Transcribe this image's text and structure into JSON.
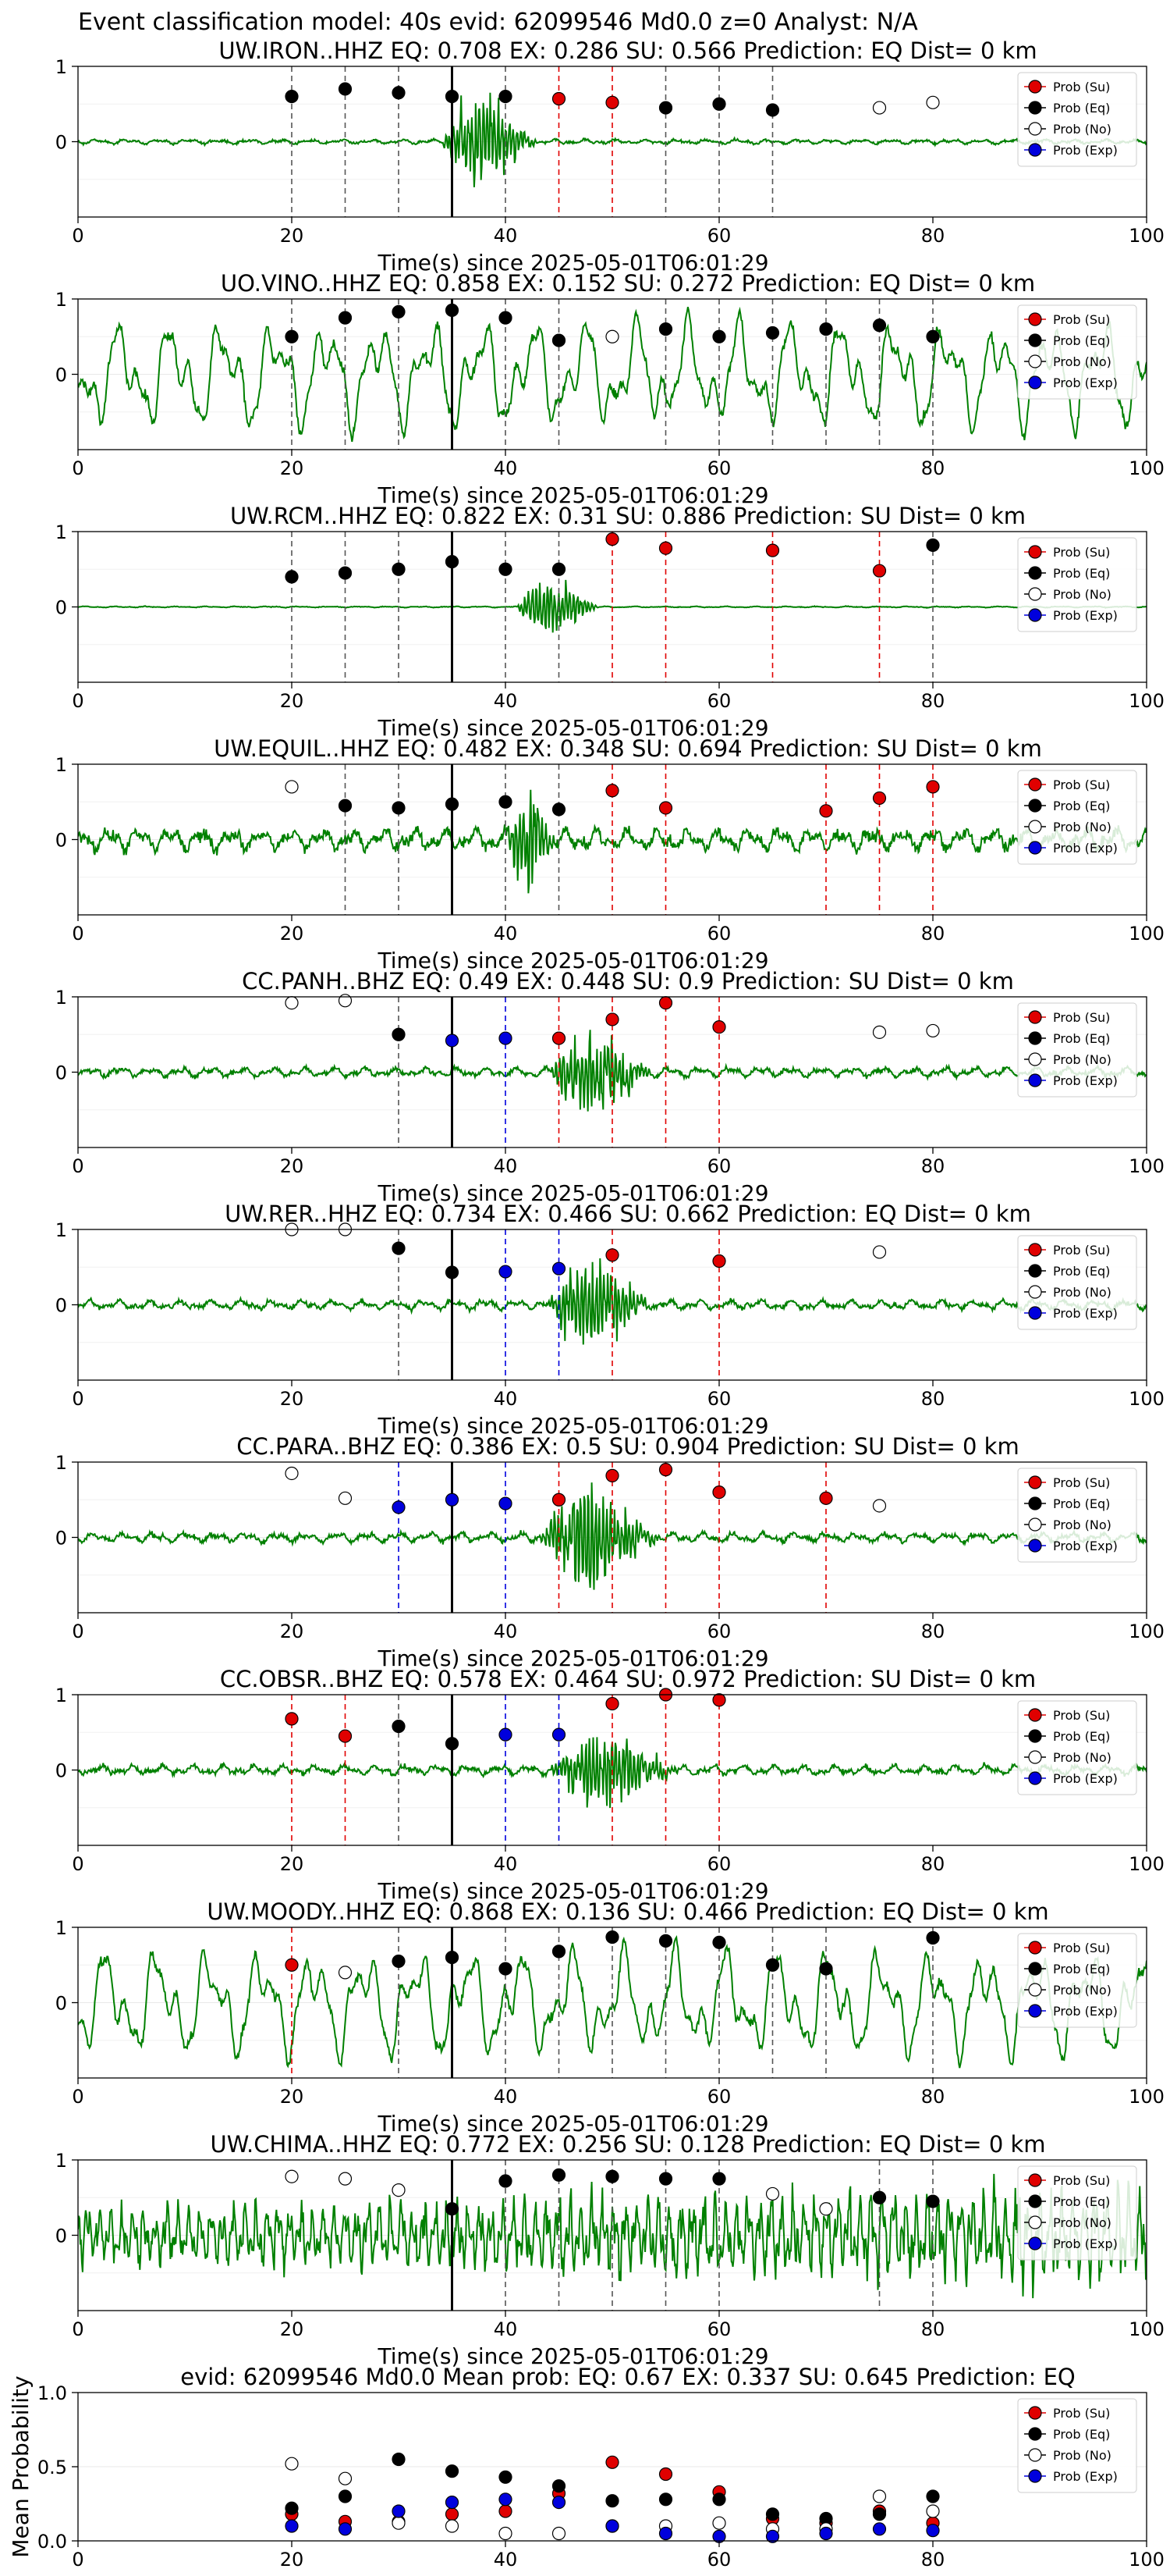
{
  "figure_title": "Event classification model: 40s evid: 62099546 Md0.0 z=0 Analyst: N/A",
  "colors": {
    "trace": "#008000",
    "su": "#e00000",
    "eq": "#000000",
    "no": "#ffffff",
    "exp": "#0000dd",
    "arrival": "#000000"
  },
  "legend_entries": [
    "Prob (Su)",
    "Prob (Eq)",
    "Prob (No)",
    "Prob (Exp)"
  ],
  "chart_data": [
    {
      "type": "scatter",
      "station": "UW.IRON..HHZ",
      "title": "UW.IRON..HHZ   EQ: 0.708  EX: 0.286  SU: 0.566   Prediction: EQ    Dist= 0 km",
      "xlabel": "Time(s) since 2025-05-01T06:01:29",
      "xlim": [
        0,
        100
      ],
      "ylim": [
        -1,
        1
      ],
      "yticks": [
        0,
        1
      ],
      "xticks": [
        0,
        20,
        40,
        60,
        80,
        100
      ],
      "arrival": 35,
      "waveform": {
        "amplitude": "quiet",
        "burst_start": 34,
        "burst_end": 47,
        "burst_amp": 1.3,
        "event": "strong"
      },
      "points": [
        {
          "x": 20,
          "y": 0.6,
          "cls": "Eq"
        },
        {
          "x": 25,
          "y": 0.7,
          "cls": "Eq"
        },
        {
          "x": 30,
          "y": 0.65,
          "cls": "Eq"
        },
        {
          "x": 35,
          "y": 0.6,
          "cls": "Eq"
        },
        {
          "x": 40,
          "y": 0.6,
          "cls": "Eq"
        },
        {
          "x": 45,
          "y": 0.57,
          "cls": "Su"
        },
        {
          "x": 50,
          "y": 0.52,
          "cls": "Su"
        },
        {
          "x": 55,
          "y": 0.45,
          "cls": "Eq"
        },
        {
          "x": 60,
          "y": 0.5,
          "cls": "Eq"
        },
        {
          "x": 65,
          "y": 0.42,
          "cls": "Eq"
        },
        {
          "x": 75,
          "y": 0.45,
          "cls": "No"
        },
        {
          "x": 80,
          "y": 0.52,
          "cls": "No"
        }
      ]
    },
    {
      "type": "scatter",
      "station": "UO.VINO..HHZ",
      "title": "UO.VINO..HHZ   EQ: 0.858  EX: 0.152  SU: 0.272   Prediction: EQ    Dist= 0 km",
      "xlabel": "Time(s) since 2025-05-01T06:01:29",
      "xlim": [
        0,
        100
      ],
      "ylim": [
        -1,
        1
      ],
      "yticks": [
        0,
        1
      ],
      "xticks": [
        0,
        20,
        40,
        60,
        80,
        100
      ],
      "arrival": 35,
      "waveform": {
        "amplitude": "noisy",
        "burst_start": 0,
        "burst_end": 0,
        "burst_amp": 0,
        "event": "none"
      },
      "points": [
        {
          "x": 20,
          "y": 0.5,
          "cls": "Eq"
        },
        {
          "x": 25,
          "y": 0.75,
          "cls": "Eq"
        },
        {
          "x": 30,
          "y": 0.83,
          "cls": "Eq"
        },
        {
          "x": 35,
          "y": 0.85,
          "cls": "Eq"
        },
        {
          "x": 40,
          "y": 0.75,
          "cls": "Eq"
        },
        {
          "x": 45,
          "y": 0.45,
          "cls": "Eq"
        },
        {
          "x": 50,
          "y": 0.5,
          "cls": "No"
        },
        {
          "x": 55,
          "y": 0.6,
          "cls": "Eq"
        },
        {
          "x": 60,
          "y": 0.5,
          "cls": "Eq"
        },
        {
          "x": 65,
          "y": 0.55,
          "cls": "Eq"
        },
        {
          "x": 70,
          "y": 0.6,
          "cls": "Eq"
        },
        {
          "x": 75,
          "y": 0.65,
          "cls": "Eq"
        },
        {
          "x": 80,
          "y": 0.5,
          "cls": "Eq"
        }
      ]
    },
    {
      "type": "scatter",
      "station": "UW.RCM..HHZ",
      "title": "UW.RCM..HHZ   EQ: 0.822  EX: 0.31  SU: 0.886   Prediction: SU    Dist= 0 km",
      "xlabel": "Time(s) since 2025-05-01T06:01:29",
      "xlim": [
        0,
        100
      ],
      "ylim": [
        -1,
        1
      ],
      "yticks": [
        0,
        1
      ],
      "xticks": [
        0,
        20,
        40,
        60,
        80,
        100
      ],
      "arrival": 35,
      "waveform": {
        "amplitude": "flat",
        "burst_start": 41,
        "burst_end": 52,
        "burst_amp": 0.8,
        "event": "medium"
      },
      "points": [
        {
          "x": 20,
          "y": 0.4,
          "cls": "Eq"
        },
        {
          "x": 25,
          "y": 0.45,
          "cls": "Eq"
        },
        {
          "x": 30,
          "y": 0.5,
          "cls": "Eq"
        },
        {
          "x": 35,
          "y": 0.6,
          "cls": "Eq"
        },
        {
          "x": 40,
          "y": 0.5,
          "cls": "Eq"
        },
        {
          "x": 45,
          "y": 0.5,
          "cls": "Eq"
        },
        {
          "x": 50,
          "y": 0.9,
          "cls": "Su"
        },
        {
          "x": 55,
          "y": 0.78,
          "cls": "Su"
        },
        {
          "x": 65,
          "y": 0.75,
          "cls": "Su"
        },
        {
          "x": 75,
          "y": 0.48,
          "cls": "Su"
        },
        {
          "x": 80,
          "y": 0.82,
          "cls": "Eq"
        }
      ]
    },
    {
      "type": "scatter",
      "station": "UW.EQUIL..HHZ",
      "title": "UW.EQUIL..HHZ   EQ: 0.482  EX: 0.348  SU: 0.694   Prediction: SU    Dist= 0 km",
      "xlabel": "Time(s) since 2025-05-01T06:01:29",
      "xlim": [
        0,
        100
      ],
      "ylim": [
        -1,
        1
      ],
      "yticks": [
        0,
        1
      ],
      "xticks": [
        0,
        20,
        40,
        60,
        80,
        100
      ],
      "arrival": 35,
      "waveform": {
        "amplitude": "medium",
        "burst_start": 40,
        "burst_end": 47,
        "burst_amp": 1.3,
        "event": "strong"
      },
      "points": [
        {
          "x": 20,
          "y": 0.7,
          "cls": "No"
        },
        {
          "x": 25,
          "y": 0.45,
          "cls": "Eq"
        },
        {
          "x": 30,
          "y": 0.42,
          "cls": "Eq"
        },
        {
          "x": 35,
          "y": 0.47,
          "cls": "Eq"
        },
        {
          "x": 40,
          "y": 0.5,
          "cls": "Eq"
        },
        {
          "x": 45,
          "y": 0.4,
          "cls": "Eq"
        },
        {
          "x": 50,
          "y": 0.65,
          "cls": "Su"
        },
        {
          "x": 55,
          "y": 0.42,
          "cls": "Su"
        },
        {
          "x": 70,
          "y": 0.38,
          "cls": "Su"
        },
        {
          "x": 75,
          "y": 0.55,
          "cls": "Su"
        },
        {
          "x": 80,
          "y": 0.7,
          "cls": "Su"
        }
      ]
    },
    {
      "type": "scatter",
      "station": "CC.PANH..BHZ",
      "title": "CC.PANH..BHZ   EQ: 0.49  EX: 0.448  SU: 0.9   Prediction: SU    Dist= 0 km",
      "xlabel": "Time(s) since 2025-05-01T06:01:29",
      "xlim": [
        0,
        100
      ],
      "ylim": [
        -1,
        1
      ],
      "yticks": [
        0,
        1
      ],
      "xticks": [
        0,
        20,
        40,
        60,
        80,
        100
      ],
      "arrival": 35,
      "waveform": {
        "amplitude": "low",
        "burst_start": 44,
        "burst_end": 58,
        "burst_amp": 1.2,
        "event": "strong"
      },
      "points": [
        {
          "x": 20,
          "y": 0.92,
          "cls": "No"
        },
        {
          "x": 25,
          "y": 0.95,
          "cls": "No"
        },
        {
          "x": 30,
          "y": 0.5,
          "cls": "Eq"
        },
        {
          "x": 35,
          "y": 0.42,
          "cls": "Exp"
        },
        {
          "x": 40,
          "y": 0.45,
          "cls": "Exp"
        },
        {
          "x": 45,
          "y": 0.45,
          "cls": "Su"
        },
        {
          "x": 50,
          "y": 0.7,
          "cls": "Su"
        },
        {
          "x": 55,
          "y": 0.92,
          "cls": "Su"
        },
        {
          "x": 60,
          "y": 0.6,
          "cls": "Su"
        },
        {
          "x": 75,
          "y": 0.53,
          "cls": "No"
        },
        {
          "x": 80,
          "y": 0.55,
          "cls": "No"
        }
      ]
    },
    {
      "type": "scatter",
      "station": "UW.RER..HHZ",
      "title": "UW.RER..HHZ   EQ: 0.734  EX: 0.466  SU: 0.662   Prediction: EQ    Dist= 0 km",
      "xlabel": "Time(s) since 2025-05-01T06:01:29",
      "xlim": [
        0,
        100
      ],
      "ylim": [
        -1,
        1
      ],
      "yticks": [
        0,
        1
      ],
      "xticks": [
        0,
        20,
        40,
        60,
        80,
        100
      ],
      "arrival": 35,
      "waveform": {
        "amplitude": "low",
        "burst_start": 44,
        "burst_end": 58,
        "burst_amp": 1.2,
        "event": "strong"
      },
      "points": [
        {
          "x": 20,
          "y": 1.0,
          "cls": "No"
        },
        {
          "x": 25,
          "y": 1.0,
          "cls": "No"
        },
        {
          "x": 30,
          "y": 0.75,
          "cls": "Eq"
        },
        {
          "x": 35,
          "y": 0.43,
          "cls": "Eq"
        },
        {
          "x": 40,
          "y": 0.44,
          "cls": "Exp"
        },
        {
          "x": 45,
          "y": 0.48,
          "cls": "Exp"
        },
        {
          "x": 50,
          "y": 0.66,
          "cls": "Su"
        },
        {
          "x": 60,
          "y": 0.58,
          "cls": "Su"
        },
        {
          "x": 75,
          "y": 0.7,
          "cls": "No"
        }
      ]
    },
    {
      "type": "scatter",
      "station": "CC.PARA..BHZ",
      "title": "CC.PARA..BHZ   EQ: 0.386  EX: 0.5  SU: 0.904   Prediction: SU    Dist= 0 km",
      "xlabel": "Time(s) since 2025-05-01T06:01:29",
      "xlim": [
        0,
        100
      ],
      "ylim": [
        -1,
        1
      ],
      "yticks": [
        0,
        1
      ],
      "xticks": [
        0,
        20,
        40,
        60,
        80,
        100
      ],
      "arrival": 35,
      "waveform": {
        "amplitude": "low",
        "burst_start": 43,
        "burst_end": 60,
        "burst_amp": 1.3,
        "event": "strong"
      },
      "points": [
        {
          "x": 20,
          "y": 0.85,
          "cls": "No"
        },
        {
          "x": 25,
          "y": 0.52,
          "cls": "No"
        },
        {
          "x": 30,
          "y": 0.4,
          "cls": "Exp"
        },
        {
          "x": 35,
          "y": 0.5,
          "cls": "Exp"
        },
        {
          "x": 40,
          "y": 0.45,
          "cls": "Exp"
        },
        {
          "x": 45,
          "y": 0.5,
          "cls": "Su"
        },
        {
          "x": 50,
          "y": 0.82,
          "cls": "Su"
        },
        {
          "x": 55,
          "y": 0.9,
          "cls": "Su"
        },
        {
          "x": 60,
          "y": 0.6,
          "cls": "Su"
        },
        {
          "x": 70,
          "y": 0.52,
          "cls": "Su"
        },
        {
          "x": 75,
          "y": 0.42,
          "cls": "No"
        }
      ]
    },
    {
      "type": "scatter",
      "station": "CC.OBSR..BHZ",
      "title": "CC.OBSR..BHZ   EQ: 0.578  EX: 0.464  SU: 0.972   Prediction: SU    Dist= 0 km",
      "xlabel": "Time(s) since 2025-05-01T06:01:29",
      "xlim": [
        0,
        100
      ],
      "ylim": [
        -1,
        1
      ],
      "yticks": [
        0,
        1
      ],
      "xticks": [
        0,
        20,
        40,
        60,
        80,
        100
      ],
      "arrival": 35,
      "waveform": {
        "amplitude": "low",
        "burst_start": 44,
        "burst_end": 62,
        "burst_amp": 1.0,
        "event": "strong"
      },
      "points": [
        {
          "x": 20,
          "y": 0.68,
          "cls": "Su"
        },
        {
          "x": 25,
          "y": 0.45,
          "cls": "Su"
        },
        {
          "x": 30,
          "y": 0.58,
          "cls": "Eq"
        },
        {
          "x": 35,
          "y": 0.35,
          "cls": "Eq"
        },
        {
          "x": 40,
          "y": 0.47,
          "cls": "Exp"
        },
        {
          "x": 45,
          "y": 0.47,
          "cls": "Exp"
        },
        {
          "x": 50,
          "y": 0.88,
          "cls": "Su"
        },
        {
          "x": 55,
          "y": 1.0,
          "cls": "Su"
        },
        {
          "x": 60,
          "y": 0.93,
          "cls": "Su"
        }
      ]
    },
    {
      "type": "scatter",
      "station": "UW.MOODY..HHZ",
      "title": "UW.MOODY..HHZ   EQ: 0.868  EX: 0.136  SU: 0.466   Prediction: EQ    Dist= 0 km",
      "xlabel": "Time(s) since 2025-05-01T06:01:29",
      "xlim": [
        0,
        100
      ],
      "ylim": [
        -1,
        1
      ],
      "yticks": [
        0,
        1
      ],
      "xticks": [
        0,
        20,
        40,
        60,
        80,
        100
      ],
      "arrival": 35,
      "waveform": {
        "amplitude": "noisy",
        "burst_start": 0,
        "burst_end": 0,
        "burst_amp": 0,
        "event": "none"
      },
      "points": [
        {
          "x": 20,
          "y": 0.5,
          "cls": "Su"
        },
        {
          "x": 25,
          "y": 0.4,
          "cls": "No"
        },
        {
          "x": 30,
          "y": 0.55,
          "cls": "Eq"
        },
        {
          "x": 35,
          "y": 0.6,
          "cls": "Eq"
        },
        {
          "x": 40,
          "y": 0.45,
          "cls": "Eq"
        },
        {
          "x": 45,
          "y": 0.68,
          "cls": "Eq"
        },
        {
          "x": 50,
          "y": 0.87,
          "cls": "Eq"
        },
        {
          "x": 55,
          "y": 0.82,
          "cls": "Eq"
        },
        {
          "x": 60,
          "y": 0.8,
          "cls": "Eq"
        },
        {
          "x": 65,
          "y": 0.5,
          "cls": "Eq"
        },
        {
          "x": 70,
          "y": 0.45,
          "cls": "Eq"
        },
        {
          "x": 80,
          "y": 0.86,
          "cls": "Eq"
        }
      ]
    },
    {
      "type": "scatter",
      "station": "UW.CHIMA..HHZ",
      "title": "UW.CHIMA..HHZ   EQ: 0.772  EX: 0.256  SU: 0.128   Prediction: EQ    Dist= 0 km",
      "xlabel": "Time(s) since 2025-05-01T06:01:29",
      "xlim": [
        0,
        100
      ],
      "ylim": [
        -1,
        1
      ],
      "yticks": [
        0,
        1
      ],
      "xticks": [
        0,
        20,
        40,
        60,
        80,
        100
      ],
      "arrival": 35,
      "waveform": {
        "amplitude": "noisy_hf",
        "burst_start": 0,
        "burst_end": 0,
        "burst_amp": 0,
        "event": "none"
      },
      "points": [
        {
          "x": 20,
          "y": 0.78,
          "cls": "No"
        },
        {
          "x": 25,
          "y": 0.75,
          "cls": "No"
        },
        {
          "x": 30,
          "y": 0.6,
          "cls": "No"
        },
        {
          "x": 35,
          "y": 0.35,
          "cls": "Eq"
        },
        {
          "x": 40,
          "y": 0.72,
          "cls": "Eq"
        },
        {
          "x": 45,
          "y": 0.8,
          "cls": "Eq"
        },
        {
          "x": 50,
          "y": 0.78,
          "cls": "Eq"
        },
        {
          "x": 55,
          "y": 0.75,
          "cls": "Eq"
        },
        {
          "x": 60,
          "y": 0.75,
          "cls": "Eq"
        },
        {
          "x": 65,
          "y": 0.55,
          "cls": "No"
        },
        {
          "x": 70,
          "y": 0.35,
          "cls": "No"
        },
        {
          "x": 75,
          "y": 0.5,
          "cls": "Eq"
        },
        {
          "x": 80,
          "y": 0.45,
          "cls": "Eq"
        }
      ]
    },
    {
      "type": "scatter",
      "title": "evid: 62099546  Md0.0   Mean prob:   EQ: 0.67  EX: 0.337  SU: 0.645   Prediction: EQ",
      "ylabel": "Mean Probability",
      "xlim": [
        0,
        100
      ],
      "ylim": [
        0,
        1
      ],
      "yticks": [
        0.0,
        0.5,
        1.0
      ],
      "ytick_labels": [
        "0.0",
        "0.5",
        "1.0"
      ],
      "xticks": [
        0,
        20,
        40,
        60,
        80,
        100
      ],
      "series": [
        {
          "name": "Prob (Su)",
          "cls": "Su",
          "x": [
            20,
            25,
            30,
            35,
            40,
            45,
            50,
            55,
            60,
            65,
            70,
            75,
            80
          ],
          "y": [
            0.18,
            0.13,
            0.13,
            0.18,
            0.2,
            0.32,
            0.53,
            0.45,
            0.33,
            0.15,
            0.12,
            0.2,
            0.12
          ]
        },
        {
          "name": "Prob (Eq)",
          "cls": "Eq",
          "x": [
            20,
            25,
            30,
            35,
            40,
            45,
            50,
            55,
            60,
            65,
            70,
            75,
            80
          ],
          "y": [
            0.22,
            0.3,
            0.55,
            0.47,
            0.43,
            0.37,
            0.27,
            0.28,
            0.28,
            0.18,
            0.15,
            0.18,
            0.3
          ]
        },
        {
          "name": "Prob (No)",
          "cls": "No",
          "x": [
            20,
            25,
            30,
            35,
            40,
            45,
            50,
            55,
            60,
            65,
            70,
            75,
            80
          ],
          "y": [
            0.52,
            0.42,
            0.12,
            0.1,
            0.05,
            0.05,
            0.1,
            0.1,
            0.12,
            0.08,
            0.08,
            0.3,
            0.2
          ]
        },
        {
          "name": "Prob (Exp)",
          "cls": "Exp",
          "x": [
            20,
            25,
            30,
            35,
            40,
            45,
            50,
            55,
            60,
            65,
            70,
            75,
            80
          ],
          "y": [
            0.1,
            0.08,
            0.2,
            0.26,
            0.28,
            0.26,
            0.1,
            0.05,
            0.03,
            0.03,
            0.05,
            0.08,
            0.07
          ]
        }
      ]
    }
  ]
}
